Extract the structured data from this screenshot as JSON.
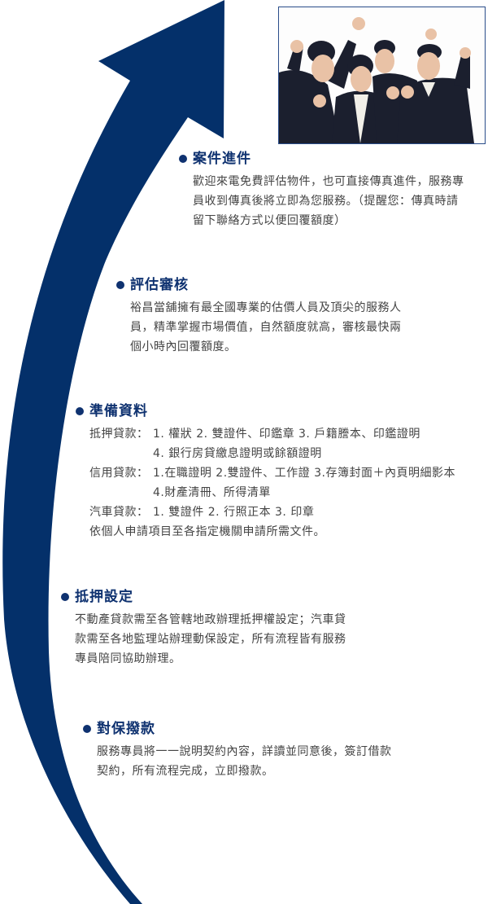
{
  "colors": {
    "arrow": "#04306a",
    "heading": "#0f3270",
    "text": "#444444",
    "photo_border": "#2a4d8a"
  },
  "photo": {
    "alt": "business-team-cheering"
  },
  "steps": [
    {
      "title": "案件進件",
      "lines": [
        "歡迎來電免費評估物件，也可直接傳真進件，服務專",
        "員收到傳真後將立即為您服務。（提醒您：傳真時請",
        "留下聯絡方式以便回覆額度）"
      ]
    },
    {
      "title": "評估審核",
      "lines": [
        "裕昌當舖擁有最全國專業的估價人員及頂尖的服務人",
        "員，精準掌握市場價值，自然額度就高，審核最快兩",
        "個小時內回覆額度。"
      ]
    },
    {
      "title": "準備資料",
      "rows": [
        {
          "label": "抵押貸款：",
          "lines": [
            "1. 權狀 2. 雙證件、印鑑章 3. 戶籍謄本、印鑑證明",
            "4. 銀行房貸繳息證明或餘額證明"
          ]
        },
        {
          "label": "信用貸款：",
          "lines": [
            "1.在職證明 2.雙證件、工作證 3.存簿封面＋內頁明細影本",
            "4.財產清冊、所得清單"
          ]
        },
        {
          "label": "汽車貸款：",
          "lines": [
            "1. 雙證件 2. 行照正本 3. 印章"
          ]
        }
      ],
      "footer": "依個人申請項目至各指定機關申請所需文件。"
    },
    {
      "title": "抵押設定",
      "lines": [
        "不動產貸款需至各管轄地政辦理抵押權設定；汽車貸",
        "款需至各地監理站辦理動保設定，所有流程皆有服務",
        "專員陪同協助辦理。"
      ]
    },
    {
      "title": "對保撥款",
      "lines": [
        "服務專員將一一說明契約內容，詳讀並同意後，簽訂借款",
        "契約，所有流程完成，立即撥款。"
      ]
    }
  ]
}
